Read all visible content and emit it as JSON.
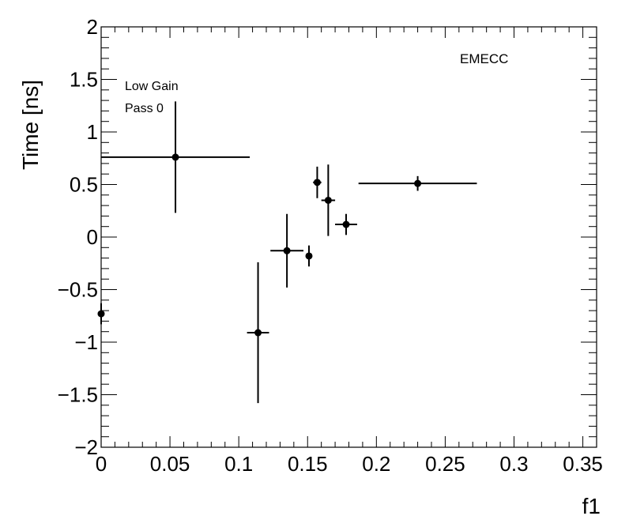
{
  "chart_data": {
    "type": "scatter",
    "xlabel": "f1",
    "ylabel": "Time [ns]",
    "xlim": [
      0,
      0.36
    ],
    "ylim": [
      -2,
      2
    ],
    "x_ticks": [
      "0",
      "0.05",
      "0.1",
      "0.15",
      "0.2",
      "0.25",
      "0.3",
      "0.35"
    ],
    "y_ticks": [
      "−2",
      "−1.5",
      "−1",
      "−0.5",
      "0",
      "0.5",
      "1",
      "1.5",
      "2"
    ],
    "grid": false,
    "annotations": {
      "gain": "Low Gain",
      "pass": "Pass 0",
      "region": "EMECC"
    },
    "points": [
      {
        "x": 0.0,
        "y": -0.73,
        "xerr": [
          0.0,
          0.0
        ],
        "yerr": [
          0.1,
          0.1
        ]
      },
      {
        "x": 0.054,
        "y": 0.76,
        "xerr": [
          0.054,
          0.054
        ],
        "yerr": [
          0.53,
          0.53
        ]
      },
      {
        "x": 0.114,
        "y": -0.91,
        "xerr": [
          0.008,
          0.008
        ],
        "yerr": [
          0.67,
          0.67
        ]
      },
      {
        "x": 0.135,
        "y": -0.13,
        "xerr": [
          0.012,
          0.012
        ],
        "yerr": [
          0.35,
          0.35
        ]
      },
      {
        "x": 0.151,
        "y": -0.18,
        "xerr": [
          0.0,
          0.0
        ],
        "yerr": [
          0.1,
          0.1
        ]
      },
      {
        "x": 0.157,
        "y": 0.52,
        "xerr": [
          0.003,
          0.003
        ],
        "yerr": [
          0.15,
          0.15
        ]
      },
      {
        "x": 0.165,
        "y": 0.35,
        "xerr": [
          0.005,
          0.005
        ],
        "yerr": [
          0.34,
          0.34
        ]
      },
      {
        "x": 0.178,
        "y": 0.12,
        "xerr": [
          0.008,
          0.008
        ],
        "yerr": [
          0.1,
          0.1
        ]
      },
      {
        "x": 0.23,
        "y": 0.51,
        "xerr": [
          0.043,
          0.043
        ],
        "yerr": [
          0.07,
          0.07
        ]
      }
    ]
  }
}
